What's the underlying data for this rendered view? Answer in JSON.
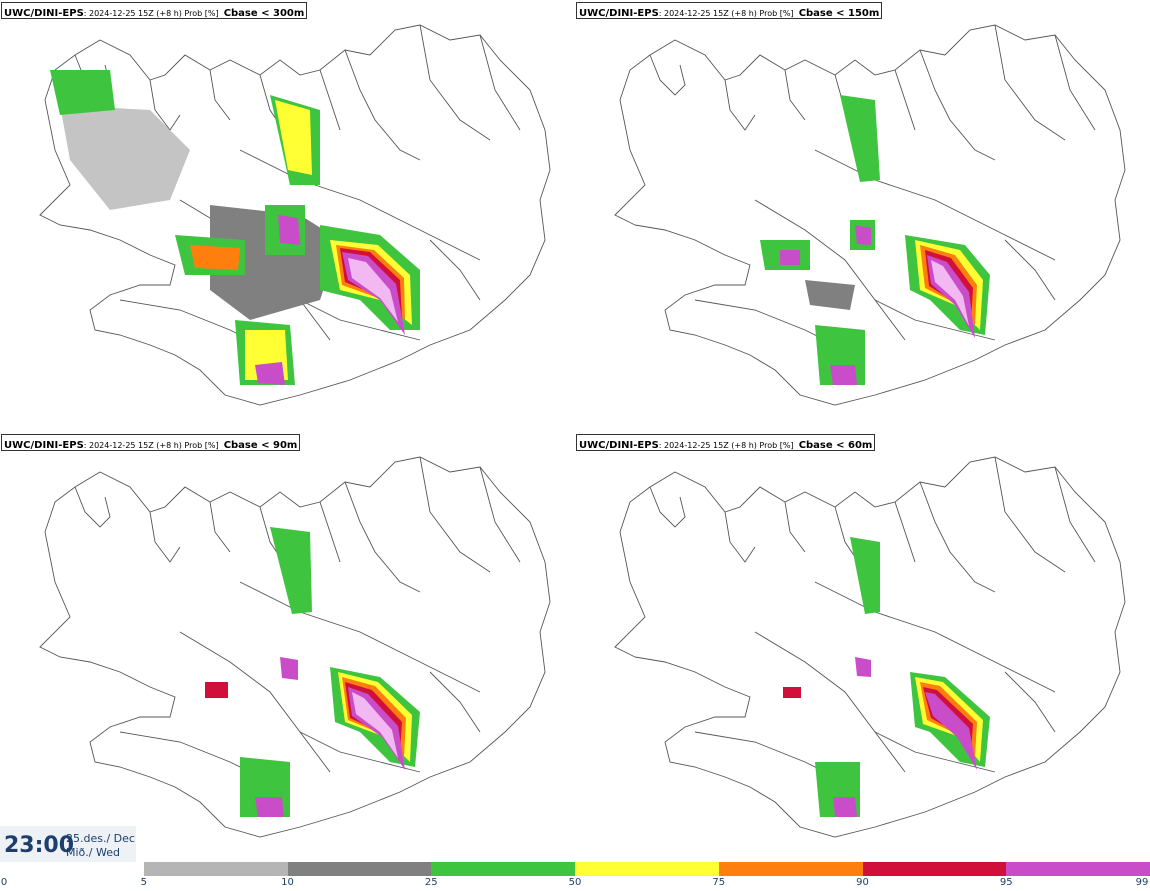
{
  "panels": [
    {
      "model": "UWC/DINI-EPS",
      "meta": ": 2024-12-25 15Z (+8 h) Prob [%]",
      "param": "Cbase < 300m"
    },
    {
      "model": "UWC/DINI-EPS",
      "meta": ": 2024-12-25 15Z (+8 h) Prob [%]",
      "param": "Cbase < 150m"
    },
    {
      "model": "UWC/DINI-EPS",
      "meta": ": 2024-12-25 15Z (+8 h) Prob [%]",
      "param": "Cbase < 90m"
    },
    {
      "model": "UWC/DINI-EPS",
      "meta": ": 2024-12-25 15Z (+8 h) Prob [%]",
      "param": "Cbase < 60m"
    }
  ],
  "time": {
    "hour": "23:00",
    "date_line1": "25.des./ Dec",
    "date_line2": "Mið./ Wed"
  },
  "legend": {
    "ticks": [
      "0",
      "5",
      "10",
      "25",
      "50",
      "75",
      "90",
      "95",
      "99"
    ],
    "colors": [
      "#ffffff",
      "#b5b5b5",
      "#808080",
      "#3fc43f",
      "#ffff33",
      "#ff7f0e",
      "#d0103a",
      "#c94dc9",
      "#f2b8f2"
    ]
  },
  "colors": {
    "land_outline": "#555555",
    "title_border": "#333333",
    "label": "#1c3f6e"
  }
}
